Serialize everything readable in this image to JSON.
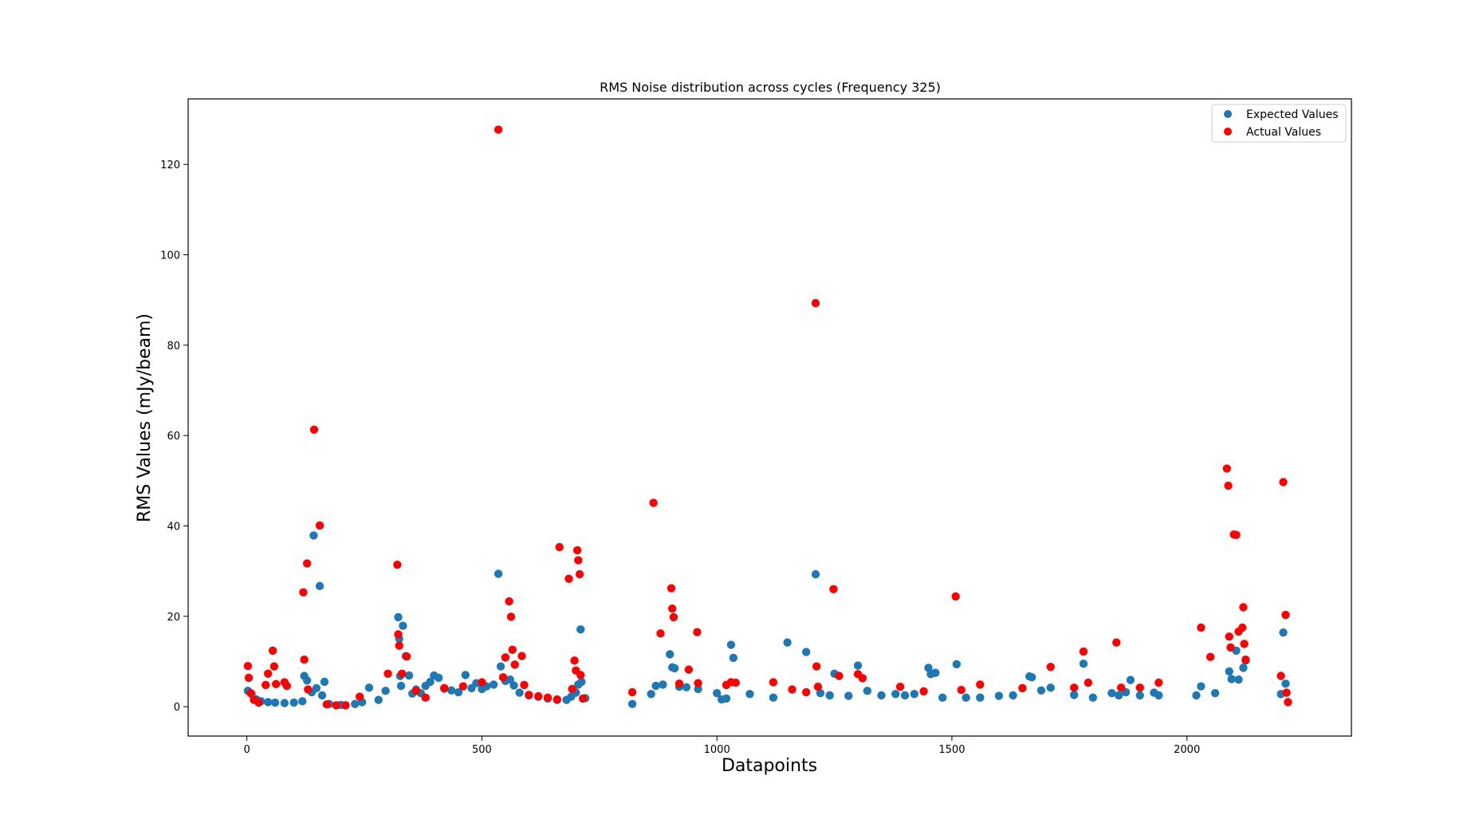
{
  "chart_data": {
    "type": "scatter",
    "title": "RMS Noise distribution across cycles (Frequency 325)",
    "xlabel": "Datapoints",
    "ylabel": "RMS Values (mJy/beam)",
    "xlim": [
      -125,
      2350
    ],
    "ylim": [
      -6.5,
      134.5
    ],
    "xticks": [
      0,
      500,
      1000,
      1500,
      2000
    ],
    "yticks": [
      0,
      20,
      40,
      60,
      80,
      100,
      120
    ],
    "grid": false,
    "legend_position": "top-right",
    "series": [
      {
        "name": "Expected Values",
        "color": "#1f77b4",
        "points": [
          [
            2,
            3.5
          ],
          [
            10,
            2.8
          ],
          [
            20,
            1.6
          ],
          [
            30,
            1.2
          ],
          [
            45,
            1.0
          ],
          [
            60,
            0.9
          ],
          [
            80,
            0.8
          ],
          [
            100,
            0.9
          ],
          [
            118,
            1.2
          ],
          [
            122,
            6.8
          ],
          [
            128,
            5.8
          ],
          [
            138,
            3.2
          ],
          [
            142,
            37.9
          ],
          [
            148,
            4.1
          ],
          [
            155,
            26.7
          ],
          [
            160,
            2.5
          ],
          [
            165,
            5.5
          ],
          [
            175,
            0.6
          ],
          [
            200,
            0.4
          ],
          [
            230,
            0.6
          ],
          [
            245,
            1.0
          ],
          [
            260,
            4.2
          ],
          [
            280,
            1.5
          ],
          [
            295,
            3.5
          ],
          [
            322,
            19.8
          ],
          [
            324,
            15.0
          ],
          [
            326,
            6.8
          ],
          [
            328,
            4.6
          ],
          [
            332,
            17.9
          ],
          [
            338,
            11.2
          ],
          [
            345,
            6.9
          ],
          [
            352,
            2.9
          ],
          [
            360,
            3.8
          ],
          [
            370,
            3.0
          ],
          [
            380,
            4.6
          ],
          [
            390,
            5.5
          ],
          [
            398,
            6.9
          ],
          [
            408,
            6.4
          ],
          [
            420,
            4.0
          ],
          [
            435,
            3.6
          ],
          [
            450,
            3.2
          ],
          [
            465,
            7.0
          ],
          [
            478,
            4.1
          ],
          [
            488,
            5.2
          ],
          [
            500,
            3.9
          ],
          [
            510,
            4.5
          ],
          [
            525,
            4.9
          ],
          [
            535,
            29.4
          ],
          [
            540,
            8.9
          ],
          [
            550,
            5.7
          ],
          [
            560,
            6.0
          ],
          [
            568,
            4.7
          ],
          [
            580,
            3.1
          ],
          [
            600,
            2.5
          ],
          [
            620,
            2.2
          ],
          [
            640,
            1.8
          ],
          [
            660,
            1.5
          ],
          [
            680,
            1.5
          ],
          [
            690,
            2.2
          ],
          [
            700,
            3.1
          ],
          [
            705,
            4.9
          ],
          [
            710,
            17.1
          ],
          [
            712,
            5.5
          ],
          [
            720,
            1.9
          ],
          [
            820,
            0.6
          ],
          [
            860,
            2.8
          ],
          [
            870,
            4.6
          ],
          [
            885,
            4.9
          ],
          [
            900,
            11.6
          ],
          [
            905,
            8.7
          ],
          [
            910,
            8.5
          ],
          [
            920,
            4.4
          ],
          [
            935,
            4.3
          ],
          [
            960,
            3.9
          ],
          [
            1000,
            3.0
          ],
          [
            1010,
            1.6
          ],
          [
            1020,
            1.8
          ],
          [
            1030,
            13.7
          ],
          [
            1035,
            10.8
          ],
          [
            1070,
            2.8
          ],
          [
            1120,
            2.0
          ],
          [
            1150,
            14.2
          ],
          [
            1190,
            12.1
          ],
          [
            1210,
            29.3
          ],
          [
            1220,
            3.0
          ],
          [
            1240,
            2.5
          ],
          [
            1250,
            7.3
          ],
          [
            1280,
            2.4
          ],
          [
            1300,
            9.1
          ],
          [
            1320,
            3.5
          ],
          [
            1350,
            2.5
          ],
          [
            1380,
            2.8
          ],
          [
            1400,
            2.5
          ],
          [
            1420,
            2.8
          ],
          [
            1450,
            8.6
          ],
          [
            1455,
            7.2
          ],
          [
            1465,
            7.5
          ],
          [
            1480,
            2.0
          ],
          [
            1510,
            9.4
          ],
          [
            1530,
            2.0
          ],
          [
            1560,
            2.0
          ],
          [
            1600,
            2.4
          ],
          [
            1630,
            2.5
          ],
          [
            1665,
            6.7
          ],
          [
            1670,
            6.5
          ],
          [
            1690,
            3.6
          ],
          [
            1710,
            4.2
          ],
          [
            1760,
            2.6
          ],
          [
            1780,
            9.5
          ],
          [
            1800,
            2.0
          ],
          [
            1840,
            3.0
          ],
          [
            1855,
            2.5
          ],
          [
            1870,
            3.2
          ],
          [
            1880,
            5.9
          ],
          [
            1900,
            2.5
          ],
          [
            1930,
            3.1
          ],
          [
            1940,
            2.5
          ],
          [
            2020,
            2.5
          ],
          [
            2030,
            4.5
          ],
          [
            2060,
            3.0
          ],
          [
            2090,
            7.8
          ],
          [
            2095,
            6.1
          ],
          [
            2105,
            12.4
          ],
          [
            2110,
            6.0
          ],
          [
            2120,
            8.6
          ],
          [
            2125,
            10.2
          ],
          [
            2200,
            2.8
          ],
          [
            2205,
            16.4
          ],
          [
            2210,
            5.1
          ]
        ]
      },
      {
        "name": "Actual Values",
        "color": "#ff0000",
        "points": [
          [
            2,
            9.0
          ],
          [
            4,
            6.4
          ],
          [
            8,
            3.0
          ],
          [
            15,
            1.5
          ],
          [
            25,
            0.9
          ],
          [
            40,
            4.8
          ],
          [
            45,
            7.3
          ],
          [
            55,
            12.4
          ],
          [
            58,
            8.9
          ],
          [
            62,
            5.0
          ],
          [
            80,
            5.4
          ],
          [
            85,
            4.6
          ],
          [
            120,
            25.3
          ],
          [
            122,
            10.4
          ],
          [
            128,
            31.7
          ],
          [
            130,
            3.8
          ],
          [
            143,
            61.3
          ],
          [
            155,
            40.1
          ],
          [
            170,
            0.5
          ],
          [
            190,
            0.3
          ],
          [
            210,
            0.3
          ],
          [
            240,
            2.2
          ],
          [
            300,
            7.3
          ],
          [
            320,
            31.4
          ],
          [
            322,
            16.0
          ],
          [
            324,
            13.5
          ],
          [
            330,
            7.3
          ],
          [
            340,
            11.1
          ],
          [
            360,
            3.5
          ],
          [
            380,
            2.0
          ],
          [
            420,
            4.1
          ],
          [
            460,
            4.5
          ],
          [
            500,
            5.4
          ],
          [
            535,
            127.7
          ],
          [
            545,
            6.5
          ],
          [
            550,
            10.9
          ],
          [
            558,
            23.3
          ],
          [
            562,
            19.9
          ],
          [
            565,
            12.6
          ],
          [
            570,
            9.3
          ],
          [
            585,
            11.2
          ],
          [
            590,
            4.8
          ],
          [
            600,
            2.6
          ],
          [
            620,
            2.3
          ],
          [
            640,
            2.0
          ],
          [
            660,
            1.6
          ],
          [
            665,
            35.3
          ],
          [
            685,
            28.3
          ],
          [
            692,
            3.9
          ],
          [
            697,
            10.2
          ],
          [
            700,
            8.0
          ],
          [
            703,
            34.6
          ],
          [
            705,
            32.4
          ],
          [
            708,
            29.3
          ],
          [
            710,
            7.0
          ],
          [
            715,
            1.8
          ],
          [
            820,
            3.2
          ],
          [
            865,
            45.1
          ],
          [
            880,
            16.2
          ],
          [
            903,
            26.2
          ],
          [
            905,
            21.7
          ],
          [
            908,
            19.8
          ],
          [
            920,
            5.1
          ],
          [
            940,
            8.2
          ],
          [
            958,
            16.5
          ],
          [
            960,
            5.2
          ],
          [
            1020,
            4.8
          ],
          [
            1030,
            5.4
          ],
          [
            1040,
            5.3
          ],
          [
            1120,
            5.4
          ],
          [
            1160,
            3.8
          ],
          [
            1190,
            3.2
          ],
          [
            1210,
            89.3
          ],
          [
            1212,
            8.9
          ],
          [
            1215,
            4.4
          ],
          [
            1248,
            26.0
          ],
          [
            1260,
            6.8
          ],
          [
            1300,
            7.2
          ],
          [
            1310,
            6.3
          ],
          [
            1390,
            4.4
          ],
          [
            1440,
            3.4
          ],
          [
            1508,
            24.4
          ],
          [
            1520,
            3.7
          ],
          [
            1560,
            4.9
          ],
          [
            1650,
            4.1
          ],
          [
            1710,
            8.8
          ],
          [
            1760,
            4.2
          ],
          [
            1780,
            12.2
          ],
          [
            1790,
            5.3
          ],
          [
            1850,
            14.2
          ],
          [
            1860,
            4.2
          ],
          [
            1900,
            4.2
          ],
          [
            1940,
            5.3
          ],
          [
            2030,
            17.5
          ],
          [
            2050,
            11.0
          ],
          [
            2085,
            52.7
          ],
          [
            2088,
            48.9
          ],
          [
            2090,
            15.5
          ],
          [
            2093,
            13.1
          ],
          [
            2100,
            38.1
          ],
          [
            2105,
            38.0
          ],
          [
            2110,
            16.6
          ],
          [
            2118,
            17.5
          ],
          [
            2120,
            22.0
          ],
          [
            2122,
            13.9
          ],
          [
            2125,
            10.4
          ],
          [
            2205,
            49.7
          ],
          [
            2210,
            20.3
          ],
          [
            2200,
            6.8
          ],
          [
            2212,
            3.1
          ],
          [
            2215,
            1.0
          ]
        ]
      }
    ]
  }
}
